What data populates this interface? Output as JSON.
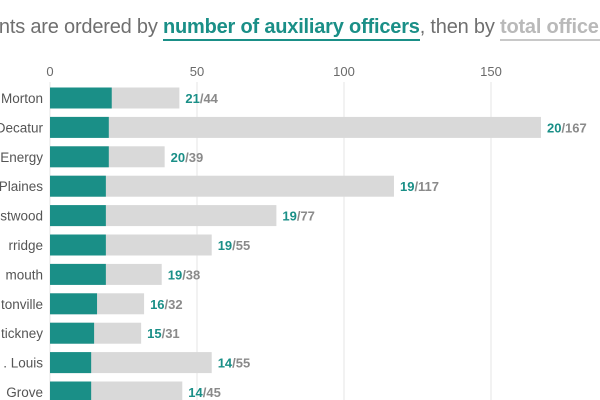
{
  "subtitle": {
    "prefix": "ents are ordered by ",
    "aux_text": "number of auxiliary officers",
    "middle": ", then by ",
    "total_text": "total officers",
    "suffix": "."
  },
  "colors": {
    "auxiliary": "#1a8f87",
    "total": "#d9d9d9",
    "grid": "#e6e6e6",
    "label": "#555555"
  },
  "chart_data": {
    "type": "bar",
    "orientation": "horizontal",
    "x_ticks": [
      0,
      50,
      100,
      150
    ],
    "xlim": [
      0,
      175
    ],
    "categories": [
      "Morton",
      "Decatur",
      "Energy",
      "Plaines",
      "stwood",
      "rridge",
      "mouth",
      "tonville",
      "tickney",
      ". Louis",
      "Grove"
    ],
    "series": [
      {
        "name": "number of auxiliary officers",
        "values": [
          21,
          20,
          20,
          19,
          19,
          19,
          19,
          16,
          15,
          14,
          14
        ]
      },
      {
        "name": "total officers",
        "values": [
          44,
          167,
          39,
          117,
          77,
          55,
          38,
          32,
          31,
          55,
          45
        ]
      }
    ]
  }
}
